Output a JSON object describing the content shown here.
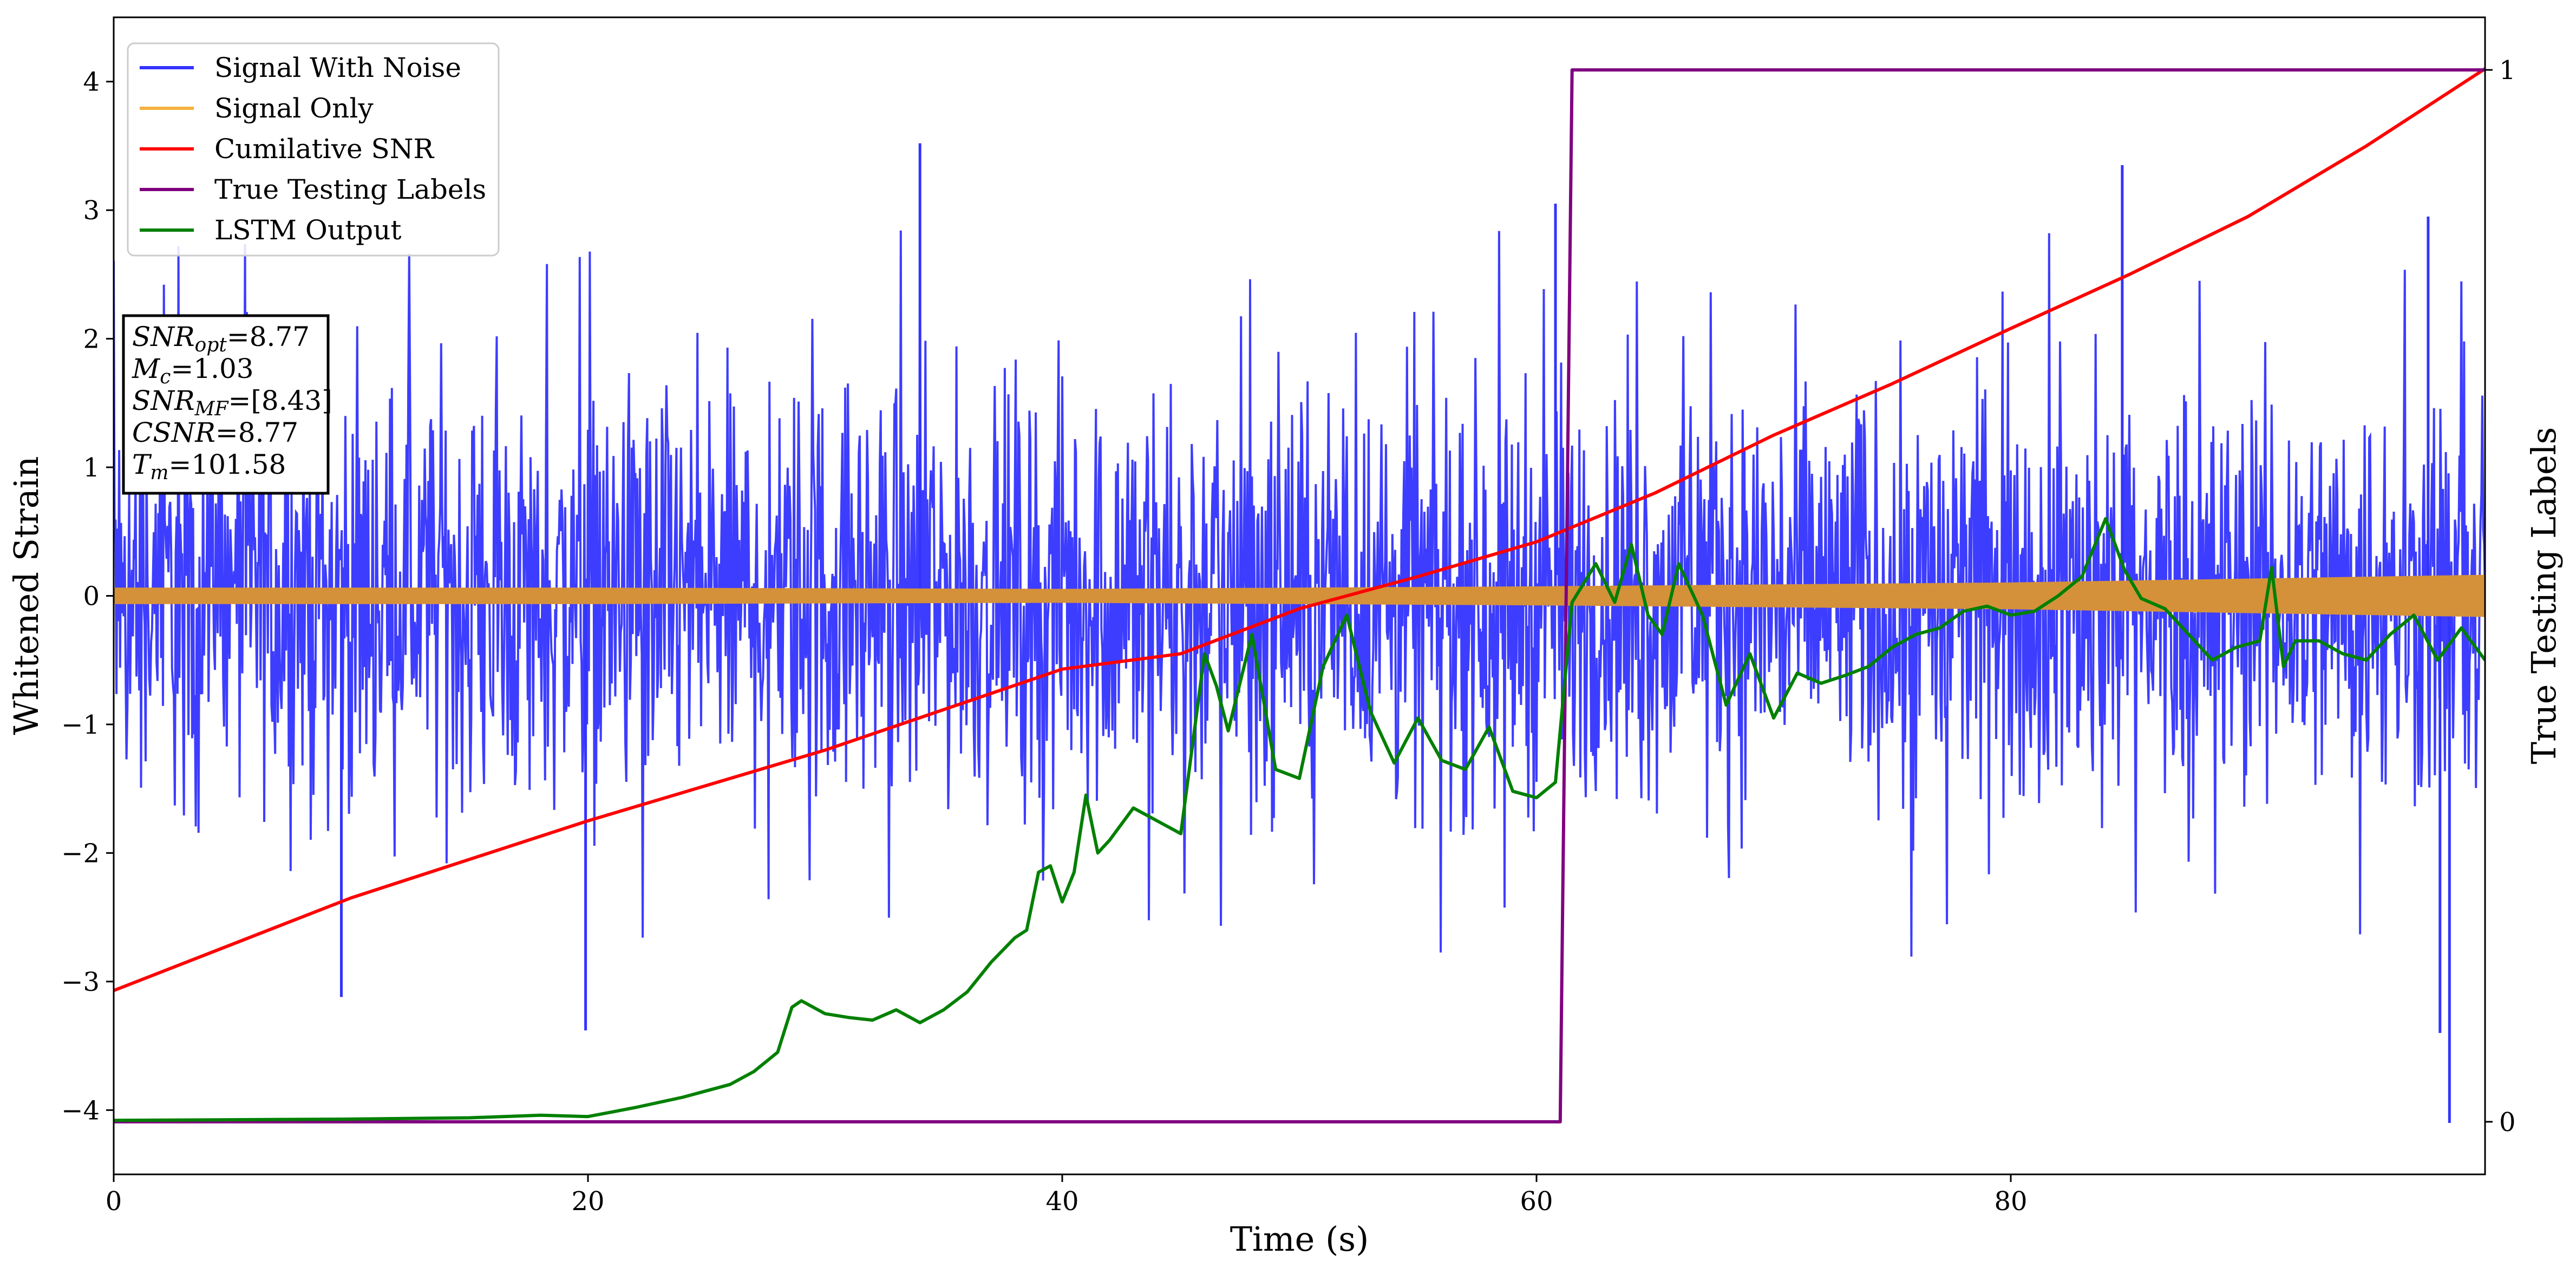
{
  "chart_data": {
    "type": "line",
    "xlabel": "Time (s)",
    "ylabel": "Whitened Strain",
    "y2label": "True Testing Labels",
    "xlim": [
      0,
      100
    ],
    "ylim": [
      -4.5,
      4.5
    ],
    "y2lim": [
      -0.05,
      1.05
    ],
    "xticks": [
      "0",
      "20",
      "40",
      "60",
      "80"
    ],
    "xtick_values": [
      0,
      20,
      40,
      60,
      80
    ],
    "yticks": [
      "−4",
      "−3",
      "−2",
      "−1",
      "0",
      "1",
      "2",
      "3",
      "4"
    ],
    "ytick_values": [
      -4,
      -3,
      -2,
      -1,
      0,
      1,
      2,
      3,
      4
    ],
    "y2ticks": [
      "0",
      "1"
    ],
    "y2tick_values": [
      0,
      1
    ],
    "grid": false,
    "legend_position": "top-left",
    "series": [
      {
        "name": "Signal With Noise",
        "color": "#3333ff",
        "axis": "left",
        "style": "dense noise, approx. ±1.5 band with spikes to about +3.5 and -4.1",
        "peaks": [
          {
            "x": 34.0,
            "y": 3.52
          },
          {
            "x": 60.8,
            "y": 3.05
          },
          {
            "x": 84.7,
            "y": 3.35
          },
          {
            "x": 97.6,
            "y": 2.95
          },
          {
            "x": 19.9,
            "y": -3.38
          },
          {
            "x": 9.6,
            "y": -3.12
          },
          {
            "x": 98.1,
            "y": -3.4
          },
          {
            "x": 98.5,
            "y": -4.1
          }
        ]
      },
      {
        "name": "Signal Only",
        "color": "#f5b041",
        "axis": "left",
        "style": "thin band around zero, slowly widening",
        "amplitude": [
          [
            0,
            0.06
          ],
          [
            20,
            0.06
          ],
          [
            40,
            0.05
          ],
          [
            60,
            0.07
          ],
          [
            80,
            0.1
          ],
          [
            100,
            0.16
          ]
        ]
      },
      {
        "name": "Cumilative SNR",
        "color": "#ff0000",
        "axis": "left",
        "x": [
          0,
          10,
          20,
          30,
          40,
          45,
          50,
          55,
          60,
          65,
          70,
          75,
          80,
          85,
          90,
          95,
          100
        ],
        "y": [
          -3.07,
          -2.35,
          -1.75,
          -1.2,
          -0.57,
          -0.45,
          -0.1,
          0.15,
          0.42,
          0.8,
          1.25,
          1.65,
          2.08,
          2.5,
          2.95,
          3.5,
          4.1
        ]
      },
      {
        "name": "True Testing Labels",
        "color": "#800080",
        "axis": "right",
        "x": [
          0,
          61.0,
          61.5,
          100
        ],
        "y": [
          0,
          0,
          1,
          1
        ]
      },
      {
        "name": "LSTM Output",
        "color": "#008000",
        "axis": "left",
        "x": [
          0,
          10,
          15,
          18,
          20,
          22,
          24,
          26,
          27,
          28,
          28.6,
          29,
          30,
          31,
          32,
          33,
          34,
          35,
          36,
          37,
          38,
          38.5,
          39,
          39.5,
          40,
          40.5,
          41,
          41.5,
          42,
          43,
          44,
          45,
          46,
          46.5,
          47,
          48,
          49,
          50,
          51,
          52,
          53,
          54,
          55,
          56,
          57,
          58,
          59,
          60,
          60.8,
          61.5,
          62.5,
          63.3,
          64,
          64.7,
          65.3,
          66,
          67,
          68,
          69,
          70,
          71,
          72,
          73,
          74,
          75,
          76,
          77,
          78,
          79,
          80,
          81,
          82,
          83,
          84,
          84.8,
          85.5,
          86.5,
          87.5,
          88.5,
          89.5,
          90.5,
          91,
          91.5,
          92,
          93,
          94,
          95,
          96,
          97,
          98,
          99,
          100
        ],
        "y": [
          -4.08,
          -4.07,
          -4.06,
          -4.04,
          -4.05,
          -3.98,
          -3.9,
          -3.8,
          -3.7,
          -3.55,
          -3.2,
          -3.15,
          -3.25,
          -3.28,
          -3.3,
          -3.22,
          -3.32,
          -3.22,
          -3.08,
          -2.85,
          -2.66,
          -2.6,
          -2.15,
          -2.1,
          -2.38,
          -2.15,
          -1.55,
          -2.0,
          -1.9,
          -1.65,
          -1.75,
          -1.85,
          -0.45,
          -0.7,
          -1.05,
          -0.3,
          -1.35,
          -1.42,
          -0.55,
          -0.15,
          -0.9,
          -1.3,
          -0.95,
          -1.28,
          -1.35,
          -1.02,
          -1.52,
          -1.57,
          -1.45,
          -0.05,
          0.25,
          -0.05,
          0.4,
          -0.15,
          -0.3,
          0.25,
          -0.15,
          -0.85,
          -0.45,
          -0.95,
          -0.6,
          -0.68,
          -0.62,
          -0.55,
          -0.4,
          -0.3,
          -0.25,
          -0.12,
          -0.08,
          -0.15,
          -0.12,
          0.0,
          0.15,
          0.6,
          0.2,
          -0.02,
          -0.1,
          -0.3,
          -0.5,
          -0.4,
          -0.35,
          0.22,
          -0.55,
          -0.35,
          -0.35,
          -0.45,
          -0.5,
          -0.3,
          -0.15,
          -0.5,
          -0.25,
          -0.5
        ]
      }
    ],
    "annotation": {
      "lines": [
        {
          "label": "SNR",
          "sub": "opt",
          "value": "=8.77"
        },
        {
          "label": "M",
          "sub": "c",
          "value": "=1.03"
        },
        {
          "label": "SNR",
          "sub": "MF",
          "value": "=[8.43]"
        },
        {
          "label": "CSNR",
          "sub": "",
          "value": "=8.77"
        },
        {
          "label": "T",
          "sub": "m",
          "value": "=101.58"
        }
      ]
    }
  }
}
